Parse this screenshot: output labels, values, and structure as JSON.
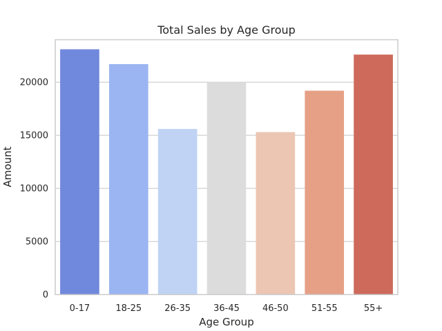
{
  "chart_data": {
    "type": "bar",
    "title": "Total Sales by Age Group",
    "xlabel": "Age Group",
    "ylabel": "Amount",
    "categories": [
      "0-17",
      "18-25",
      "26-35",
      "36-45",
      "46-50",
      "51-55",
      "55+"
    ],
    "values": [
      23100,
      21700,
      15600,
      20000,
      15300,
      19200,
      22600
    ],
    "colors": [
      "#7189dc",
      "#9bb5f2",
      "#c0d3f4",
      "#dcdcdc",
      "#ecc6b3",
      "#e6a086",
      "#cd6a5c"
    ],
    "ylim": [
      0,
      24000
    ],
    "yticks": [
      0,
      5000,
      10000,
      15000,
      20000
    ],
    "grid": "y",
    "legend": "none"
  }
}
